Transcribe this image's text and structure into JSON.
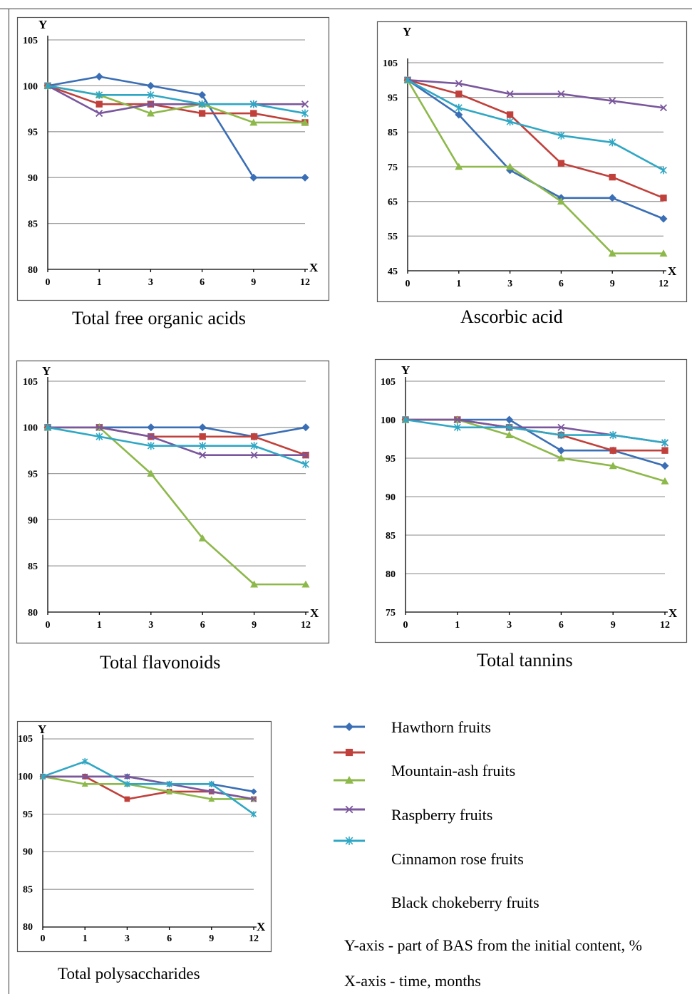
{
  "series_styles": [
    {
      "color": "#3a6eb5",
      "marker": "diamond"
    },
    {
      "color": "#c0403b",
      "marker": "square"
    },
    {
      "color": "#8db84a",
      "marker": "triangle"
    },
    {
      "color": "#7a579c",
      "marker": "x"
    },
    {
      "color": "#2fa7c4",
      "marker": "star"
    }
  ],
  "legend": {
    "items": [
      "Hawthorn fruits",
      "Mountain-ash fruits",
      "Raspberry fruits",
      "Cinnamon rose fruits",
      "Black chokeberry fruits"
    ],
    "y_note": "Y-axis - part of BAS from the initial content, %",
    "x_note": "X-axis - time, months"
  },
  "chart_data": [
    {
      "type": "line",
      "title": "Total free organic acids",
      "xlabel": "X",
      "ylabel": "Y",
      "categories": [
        "0",
        "1",
        "3",
        "6",
        "9",
        "12"
      ],
      "yticks": [
        80,
        85,
        90,
        95,
        100,
        105
      ],
      "ylim": [
        80,
        105
      ],
      "series": [
        {
          "values": [
            100,
            101,
            100,
            99,
            90,
            90
          ]
        },
        {
          "values": [
            100,
            98,
            98,
            97,
            97,
            96
          ]
        },
        {
          "values": [
            100,
            99,
            97,
            98,
            96,
            96
          ]
        },
        {
          "values": [
            100,
            97,
            98,
            98,
            98,
            98
          ]
        },
        {
          "values": [
            100,
            99,
            99,
            98,
            98,
            97
          ]
        }
      ]
    },
    {
      "type": "line",
      "title": "Ascorbic acid",
      "xlabel": "X",
      "ylabel": "Y",
      "categories": [
        "0",
        "1",
        "3",
        "6",
        "9",
        "12"
      ],
      "yticks": [
        45,
        55,
        65,
        75,
        85,
        95,
        105
      ],
      "ylim": [
        45,
        105
      ],
      "series": [
        {
          "values": [
            100,
            90,
            74,
            66,
            66,
            60
          ]
        },
        {
          "values": [
            100,
            96,
            90,
            76,
            72,
            66
          ]
        },
        {
          "values": [
            100,
            75,
            75,
            65,
            50,
            50
          ]
        },
        {
          "values": [
            100,
            99,
            96,
            96,
            94,
            92
          ]
        },
        {
          "values": [
            100,
            92,
            88,
            84,
            82,
            74
          ]
        }
      ]
    },
    {
      "type": "line",
      "title": "Total flavonoids",
      "xlabel": "X",
      "ylabel": "Y",
      "categories": [
        "0",
        "1",
        "3",
        "6",
        "9",
        "12"
      ],
      "yticks": [
        80,
        85,
        90,
        95,
        100,
        105
      ],
      "ylim": [
        80,
        105
      ],
      "series": [
        {
          "values": [
            100,
            100,
            100,
            100,
            99,
            100
          ]
        },
        {
          "values": [
            100,
            100,
            99,
            99,
            99,
            97
          ]
        },
        {
          "values": [
            100,
            100,
            95,
            88,
            83,
            83
          ]
        },
        {
          "values": [
            100,
            100,
            99,
            97,
            97,
            97
          ]
        },
        {
          "values": [
            100,
            99,
            98,
            98,
            98,
            96
          ]
        }
      ]
    },
    {
      "type": "line",
      "title": "Total tannins",
      "xlabel": "X",
      "ylabel": "Y",
      "categories": [
        "0",
        "1",
        "3",
        "6",
        "9",
        "12"
      ],
      "yticks": [
        75,
        80,
        85,
        90,
        95,
        100,
        105
      ],
      "ylim": [
        75,
        105
      ],
      "series": [
        {
          "values": [
            100,
            100,
            100,
            96,
            96,
            94
          ]
        },
        {
          "values": [
            100,
            100,
            99,
            98,
            96,
            96
          ]
        },
        {
          "values": [
            100,
            100,
            98,
            95,
            94,
            92
          ]
        },
        {
          "values": [
            100,
            100,
            99,
            99,
            98,
            97
          ]
        },
        {
          "values": [
            100,
            99,
            99,
            98,
            98,
            97
          ]
        }
      ]
    },
    {
      "type": "line",
      "title": "Total polysaccharides",
      "xlabel": "X",
      "ylabel": "Y",
      "categories": [
        "0",
        "1",
        "3",
        "6",
        "9",
        "12"
      ],
      "yticks": [
        80,
        85,
        90,
        95,
        100,
        105
      ],
      "ylim": [
        80,
        105
      ],
      "series": [
        {
          "values": [
            100,
            100,
            100,
            99,
            99,
            98
          ]
        },
        {
          "values": [
            100,
            100,
            97,
            98,
            98,
            97
          ]
        },
        {
          "values": [
            100,
            99,
            99,
            98,
            97,
            97
          ]
        },
        {
          "values": [
            100,
            100,
            100,
            99,
            98,
            97
          ]
        },
        {
          "values": [
            100,
            102,
            99,
            99,
            99,
            95
          ]
        }
      ]
    }
  ]
}
